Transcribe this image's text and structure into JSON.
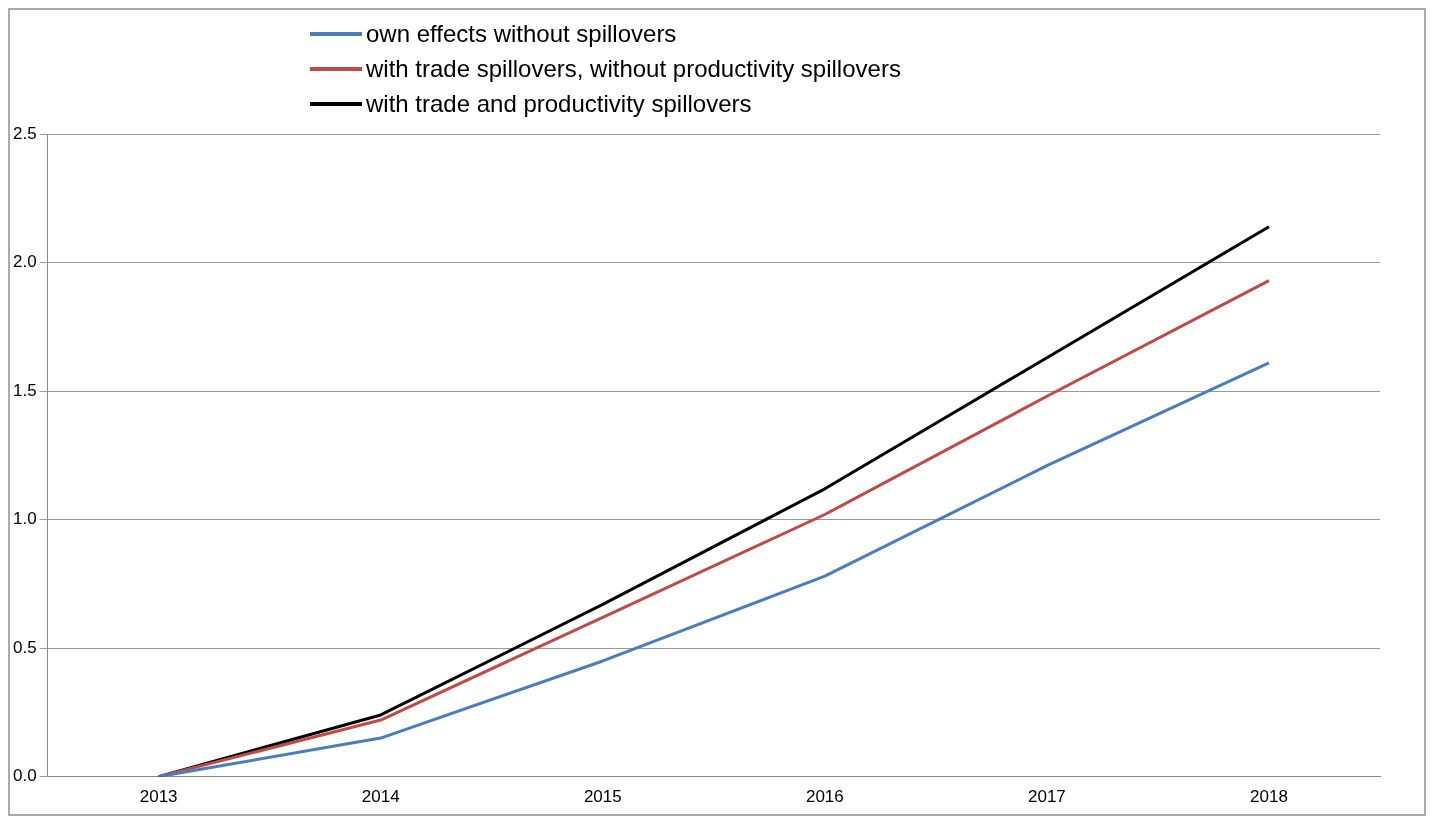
{
  "chart_data": {
    "type": "line",
    "categories": [
      "2013",
      "2014",
      "2015",
      "2016",
      "2017",
      "2018"
    ],
    "series": [
      {
        "name": "own effects without spillovers",
        "color": "#4a7ebb",
        "values": [
          0,
          0.15,
          0.45,
          0.78,
          1.21,
          1.61
        ]
      },
      {
        "name": "with trade spillovers, without productivity spillovers",
        "color": "#be4b48",
        "values": [
          0,
          0.22,
          0.62,
          1.02,
          1.48,
          1.93
        ]
      },
      {
        "name": "with trade and productivity spillovers",
        "color": "#000000",
        "values": [
          0,
          0.24,
          0.67,
          1.12,
          1.63,
          2.14
        ]
      }
    ],
    "ylim": [
      0,
      2.5
    ],
    "yticks": [
      {
        "value": 0,
        "label": "0.0"
      },
      {
        "value": 0.5,
        "label": "0.5"
      },
      {
        "value": 1,
        "label": "1.0"
      },
      {
        "value": 1.5,
        "label": "1.5"
      },
      {
        "value": 2,
        "label": "2.0"
      },
      {
        "value": 2.5,
        "label": "2.5"
      }
    ],
    "grid": "y",
    "legend": "top",
    "marker": "none",
    "line_style": "solid"
  }
}
